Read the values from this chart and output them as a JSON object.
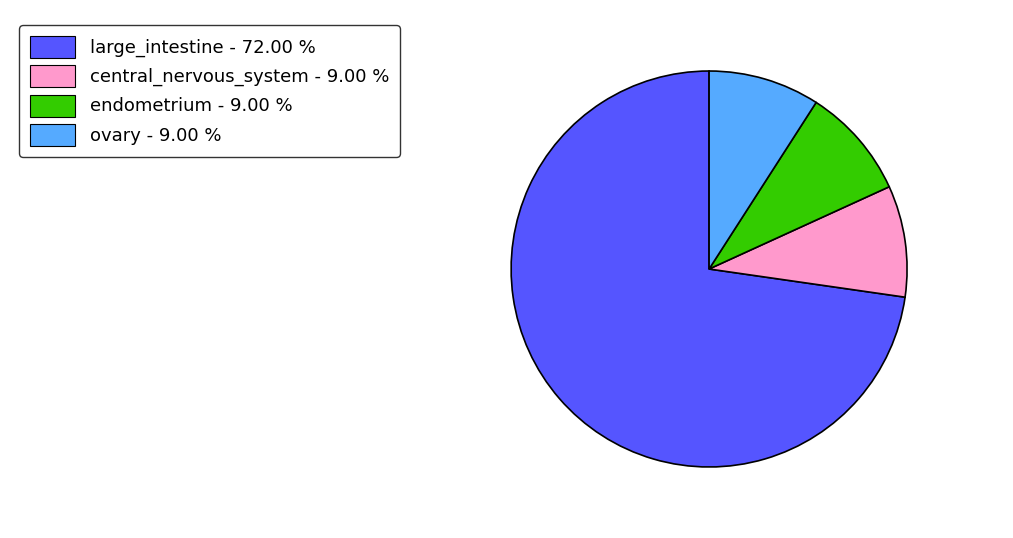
{
  "labels": [
    "large_intestine",
    "central_nervous_system",
    "endometrium",
    "ovary"
  ],
  "values": [
    72.0,
    9.0,
    9.0,
    9.0
  ],
  "colors": [
    "#5555ff",
    "#ff99cc",
    "#33cc00",
    "#55aaff"
  ],
  "legend_labels": [
    "large_intestine - 72.00 %",
    "central_nervous_system - 9.00 %",
    "endometrium - 9.00 %",
    "ovary - 9.00 %"
  ],
  "startangle": 90,
  "figsize": [
    10.13,
    5.38
  ],
  "dpi": 100,
  "background_color": "#ffffff"
}
